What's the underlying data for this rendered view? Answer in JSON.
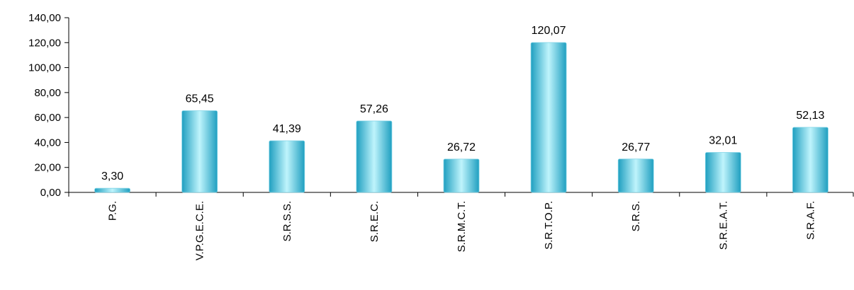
{
  "chart_data": {
    "type": "bar",
    "categories": [
      "P.G.",
      "V.P.G.E.C.E.",
      "S.R.S.S.",
      "S.R.E.C.",
      "S.R.M.C.T.",
      "S.R.T.O.P.",
      "S.R.S.",
      "S.R.E.A.T.",
      "S.R.A.F."
    ],
    "values": [
      3.3,
      65.45,
      41.39,
      57.26,
      26.72,
      120.07,
      26.77,
      32.01,
      52.13
    ],
    "value_labels": [
      "3,30",
      "65,45",
      "41,39",
      "57,26",
      "26,72",
      "120,07",
      "26,77",
      "32,01",
      "52,13"
    ],
    "y_ticks": [
      0,
      20,
      40,
      60,
      80,
      100,
      120,
      140
    ],
    "y_tick_labels": [
      "0,00",
      "20,00",
      "40,00",
      "60,00",
      "80,00",
      "100,00",
      "120,00",
      "140,00"
    ],
    "ylim": [
      0,
      140
    ],
    "title": "",
    "xlabel": "",
    "ylabel": "",
    "grid": false,
    "legend": "none",
    "colors": {
      "bar_light": "#bff4fc",
      "bar_mid": "#5fd6ee",
      "bar_dark": "#1f9fc0",
      "axis": "#000000"
    }
  }
}
